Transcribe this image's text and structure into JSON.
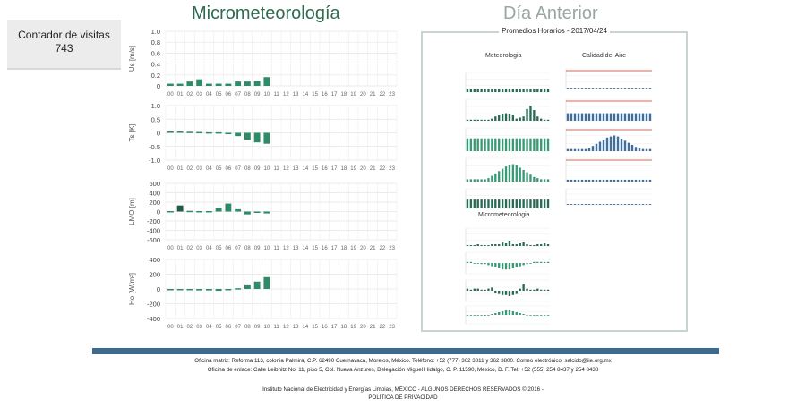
{
  "counter": {
    "label": "Contador de visitas",
    "value": "743"
  },
  "headings": {
    "main": "Micrometeorología",
    "previous": "Día Anterior"
  },
  "thumbnail": {
    "title": "Promedios Horarios - 2017/04/24",
    "section_meteo": "Meteorologia",
    "section_air": "Calidad del Aire",
    "section_micro": "Micrometeorologia"
  },
  "footer": {
    "line1": "Oficina matriz: Reforma 113, colonia Palmira, C.P. 62490 Cuernavaca, Morelos, México. Teléfono: +52 (777) 362 3811 y 362 3800. Correo electrónico: salcido@iie.org.mx",
    "line2": "Oficina de enlace: Calle Leibnitz No. 11, piso 5, Col. Nueva Anzures, Delegación Miguel Hidalgo, C. P. 11590, México, D. F. Tel: +52 (555) 254 8437 y 254 8438",
    "line3": "Instituto Nacional de Electricidad y Energías Limpias, MÉXICO - ALGUNOS DERECHOS RESERVADOS © 2016 -",
    "line4": "POLÍTICA DE PRIVACIDAD"
  },
  "colors": {
    "bar_green": "#2e8b68",
    "bar_dark": "#1f5c43",
    "blue_bar": "#3e6a8e"
  },
  "chart_data": [
    {
      "type": "bar",
      "ylabel": "Us [m/s]",
      "categories": [
        "00",
        "01",
        "02",
        "03",
        "04",
        "05",
        "06",
        "07",
        "08",
        "09",
        "10",
        "11",
        "12",
        "13",
        "14",
        "15",
        "16",
        "17",
        "18",
        "19",
        "20",
        "21",
        "22",
        "23"
      ],
      "yticks": [
        "1.0",
        "0.8",
        "0.6",
        "0.4",
        "0.2",
        "0"
      ],
      "ylim": [
        0,
        1.0
      ],
      "values": [
        0.04,
        0.04,
        0.08,
        0.12,
        0.04,
        0.04,
        0.04,
        0.08,
        0.08,
        0.09,
        0.16,
        null,
        null,
        null,
        null,
        null,
        null,
        null,
        null,
        null,
        null,
        null,
        null,
        null
      ]
    },
    {
      "type": "bar",
      "ylabel": "Ts [K]",
      "categories": [
        "00",
        "01",
        "02",
        "03",
        "04",
        "05",
        "06",
        "07",
        "08",
        "09",
        "10",
        "11",
        "12",
        "13",
        "14",
        "15",
        "16",
        "17",
        "18",
        "19",
        "20",
        "21",
        "22",
        "23"
      ],
      "yticks": [
        "1.0",
        "0.5",
        "0",
        "-0.5",
        "-1.0"
      ],
      "ylim": [
        -1.0,
        1.0
      ],
      "values": [
        0.05,
        0.05,
        0.04,
        0.03,
        0.02,
        0.02,
        -0.05,
        -0.12,
        -0.25,
        -0.35,
        -0.4,
        null,
        null,
        null,
        null,
        null,
        null,
        null,
        null,
        null,
        null,
        null,
        null,
        null
      ]
    },
    {
      "type": "bar",
      "ylabel": "LMO [m]",
      "categories": [
        "00",
        "01",
        "02",
        "03",
        "04",
        "05",
        "06",
        "07",
        "08",
        "09",
        "10",
        "11",
        "12",
        "13",
        "14",
        "15",
        "16",
        "17",
        "18",
        "19",
        "20",
        "21",
        "22",
        "23"
      ],
      "yticks": [
        "600",
        "400",
        "200",
        "0",
        "-200",
        "-400",
        "-600"
      ],
      "ylim": [
        -600,
        600
      ],
      "values": [
        10,
        130,
        15,
        10,
        10,
        80,
        170,
        50,
        -60,
        -20,
        -40,
        null,
        null,
        null,
        null,
        null,
        null,
        null,
        null,
        null,
        null,
        null,
        null,
        null
      ]
    },
    {
      "type": "bar",
      "ylabel": "Ho [W/m²]",
      "categories": [
        "00",
        "01",
        "02",
        "03",
        "04",
        "05",
        "06",
        "07",
        "08",
        "09",
        "10",
        "11",
        "12",
        "13",
        "14",
        "15",
        "16",
        "17",
        "18",
        "19",
        "20",
        "21",
        "22",
        "23"
      ],
      "yticks": [
        "400",
        "200",
        "0",
        "-200",
        "-400"
      ],
      "ylim": [
        -400,
        400
      ],
      "values": [
        -10,
        -10,
        -15,
        -20,
        -20,
        -25,
        -15,
        10,
        50,
        100,
        160,
        null,
        null,
        null,
        null,
        null,
        null,
        null,
        null,
        null,
        null,
        null,
        null,
        null
      ]
    }
  ]
}
